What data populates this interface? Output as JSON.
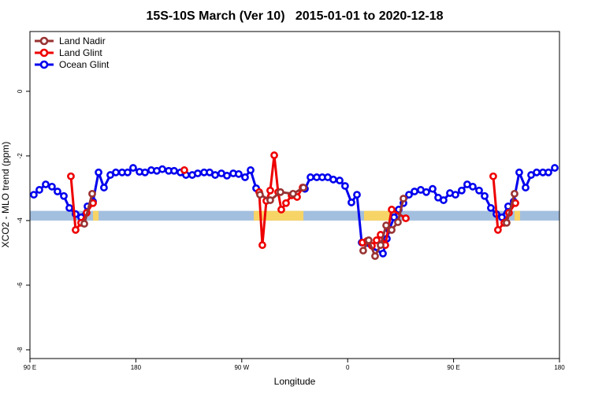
{
  "chart_data": {
    "type": "line",
    "title": "15S-10S March (Ver 10)   2015-01-01 to 2020-12-18",
    "x_label": "Longitude",
    "y_label": "XCO2 - MLO trend (ppm)",
    "xlim": [
      90,
      540
    ],
    "xticks": [
      {
        "value": 90,
        "label": "90 E"
      },
      180,
      {
        "value": 270,
        "label": "90 W"
      },
      {
        "value": 360,
        "label": "0"
      },
      {
        "value": 450,
        "label": "90 E"
      },
      {
        "value": 540,
        "label": "180"
      }
    ],
    "ylim": [
      -8.27,
      1.85
    ],
    "yticks": [
      0,
      -2,
      -4,
      -6,
      -8
    ],
    "legend": "top-left",
    "band": {
      "ylim": [
        -4.0,
        -3.7
      ],
      "color": "#a3bfdf"
    },
    "land_regions": {
      "color": "#f7d466",
      "ranges": [
        [
          143.6,
          148.3
        ],
        [
          280.2,
          322.4
        ],
        [
          373.9,
          399.4
        ],
        [
          501.8,
          506.5
        ]
      ]
    },
    "series": [
      {
        "name": "Land Nadir",
        "color": "#993333",
        "x": [
          136.2,
          142.9,
          null,
          285.5,
          294.2,
          302.9,
          313.6,
          322.4,
          null,
          373.2,
          377.9,
          383.3,
          388.0,
          392.7,
          397.4,
          402.7,
          407.4,
          null,
          495.1,
          501.8
        ],
        "values": [
          -4.1,
          -3.17,
          null,
          -3.2,
          -3.37,
          -3.12,
          -3.17,
          -2.98,
          null,
          -4.93,
          -4.61,
          -5.1,
          -4.76,
          -4.15,
          -4.29,
          -4.05,
          -3.32,
          null,
          -4.07,
          -3.17
        ]
      },
      {
        "name": "Land Glint",
        "color": "#ee0000",
        "x": [
          124.8,
          128.8,
          133.5,
          138.2,
          143.6,
          null,
          221.2,
          null,
          284.8,
          287.5,
          290.9,
          294.2,
          297.6,
          300.9,
          303.6,
          307.6,
          312.3,
          317.0,
          321.7,
          null,
          372.6,
          376.6,
          380.6,
          384.6,
          388.0,
          392.0,
          397.4,
          409.4,
          null,
          483.7,
          487.7,
          493.1,
          497.1,
          502.5
        ],
        "values": [
          -2.63,
          -4.29,
          -4.07,
          -3.76,
          -3.46,
          null,
          -2.44,
          null,
          -3.12,
          -4.76,
          -3.39,
          -3.07,
          -1.98,
          -3.12,
          -3.66,
          -3.46,
          -3.22,
          -3.27,
          -2.98,
          null,
          -4.68,
          -4.63,
          -4.78,
          -4.61,
          -4.44,
          -4.76,
          -3.66,
          -3.93,
          null,
          -2.63,
          -4.29,
          -4.07,
          -3.76,
          -3.46
        ]
      },
      {
        "name": "Ocean Glint",
        "color": "#0000ee",
        "x": [
          93.3,
          98.0,
          103.4,
          108.7,
          113.4,
          118.8,
          123.5,
          128.8,
          133.5,
          138.9,
          143.6,
          148.3,
          152.9,
          158.3,
          163.0,
          168.3,
          173.0,
          177.7,
          183.1,
          187.8,
          193.1,
          197.8,
          202.5,
          207.9,
          212.5,
          217.9,
          222.6,
          227.9,
          232.6,
          238.0,
          242.7,
          247.4,
          252.7,
          257.4,
          262.8,
          267.4,
          272.8,
          277.5,
          282.2,
          null,
          323.7,
          328.4,
          333.7,
          338.4,
          343.1,
          347.8,
          353.2,
          357.8,
          363.2,
          367.9,
          371.9,
          390.0,
          393.3,
          395.3,
          399.4,
          403.4,
          407.4,
          412.1,
          416.8,
          422.1,
          426.8,
          432.2,
          436.9,
          441.5,
          446.9,
          451.6,
          456.9,
          461.6,
          466.3,
          471.7,
          476.4,
          481.7,
          486.4,
          491.1,
          496.4,
          501.1,
          505.8,
          511.2,
          515.9,
          520.6,
          525.9,
          530.6,
          536.0
        ],
        "values": [
          -3.2,
          -3.05,
          -2.88,
          -2.95,
          -3.1,
          -3.24,
          -3.61,
          -3.8,
          -3.9,
          -3.56,
          -3.41,
          -2.51,
          -2.98,
          -2.59,
          -2.51,
          -2.51,
          -2.51,
          -2.37,
          -2.49,
          -2.51,
          -2.44,
          -2.46,
          -2.41,
          -2.46,
          -2.46,
          -2.51,
          -2.59,
          -2.59,
          -2.54,
          -2.51,
          -2.51,
          -2.59,
          -2.54,
          -2.61,
          -2.54,
          -2.56,
          -2.66,
          -2.44,
          -3.0,
          null,
          -3.02,
          -2.66,
          -2.66,
          -2.66,
          -2.66,
          -2.73,
          -2.76,
          -2.93,
          -3.44,
          -3.2,
          -4.68,
          -5.02,
          -4.56,
          -4.29,
          -3.9,
          -3.66,
          -3.46,
          -3.2,
          -3.1,
          -3.05,
          -3.12,
          -3.02,
          -3.29,
          -3.37,
          -3.15,
          -3.2,
          -3.07,
          -2.88,
          -2.95,
          -3.07,
          -3.24,
          -3.61,
          -3.8,
          -3.9,
          -3.56,
          -3.41,
          -2.51,
          -2.98,
          -2.59,
          -2.51,
          -2.51,
          -2.51,
          -2.37
        ]
      }
    ]
  }
}
